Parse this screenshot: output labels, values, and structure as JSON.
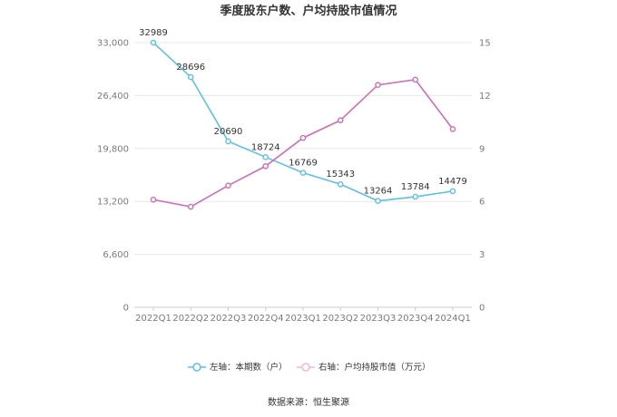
{
  "chart_data": {
    "type": "line",
    "title": "季度股东户数、户均持股市值情况",
    "categories": [
      "2022Q1",
      "2022Q2",
      "2022Q3",
      "2022Q4",
      "2023Q1",
      "2023Q2",
      "2023Q3",
      "2023Q4",
      "2024Q1"
    ],
    "series": [
      {
        "name": "左轴：本期数（户）",
        "axis": "left",
        "color": "#5bc0eb",
        "values": [
          32989,
          28696,
          20690,
          18724,
          16769,
          15343,
          13264,
          13784,
          14479
        ],
        "labels": [
          "32989",
          "28696",
          "20690",
          "18724",
          "16769",
          "15343",
          "13264",
          "13784",
          "14479"
        ]
      },
      {
        "name": "右轴：户均持股市值（万元）",
        "axis": "right",
        "color": "#d36cb5",
        "values": [
          6.1,
          5.7,
          6.9,
          8.0,
          9.6,
          10.6,
          12.6,
          12.9,
          10.1
        ]
      }
    ],
    "left_axis": {
      "ylim": [
        0,
        33000
      ],
      "ticks": [
        "0",
        "6,600",
        "13,200",
        "19,800",
        "26,400",
        "33,000"
      ],
      "tick_values": [
        0,
        6600,
        13200,
        19800,
        26400,
        33000
      ]
    },
    "right_axis": {
      "ylim": [
        0,
        15
      ],
      "ticks": [
        "0",
        "3",
        "6",
        "9",
        "12",
        "15"
      ],
      "tick_values": [
        0,
        3,
        6,
        9,
        12,
        15
      ]
    },
    "grid": true,
    "legend_position": "bottom",
    "source": "数据来源：恒生聚源"
  }
}
